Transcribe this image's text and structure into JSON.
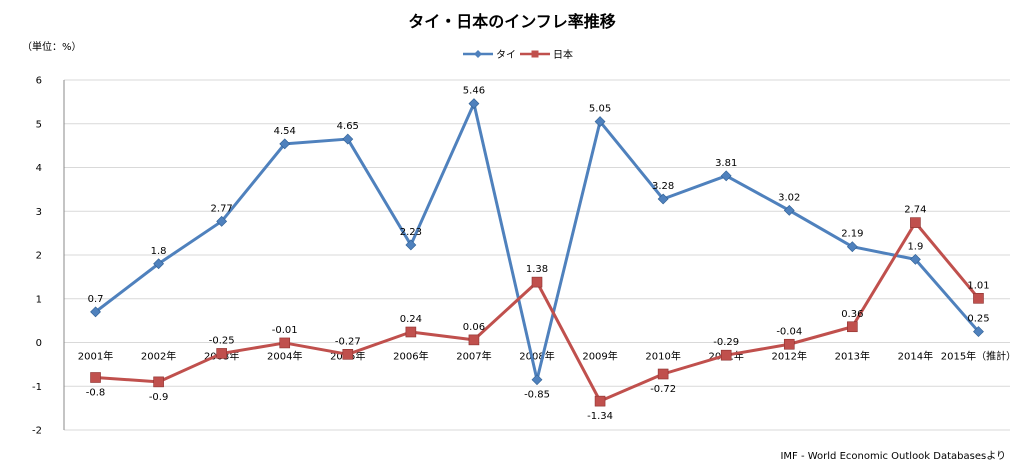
{
  "chart_data": {
    "type": "line",
    "title": "タイ・日本のインフレ率推移",
    "unit_label": "（単位：%）",
    "source": "IMF - World Economic Outlook Databasesより",
    "categories": [
      "2001年",
      "2002年",
      "2003年",
      "2004年",
      "2005年",
      "2006年",
      "2007年",
      "2008年",
      "2009年",
      "2010年",
      "2011年",
      "2012年",
      "2013年",
      "2014年",
      "2015年（推計）"
    ],
    "ylim": [
      -2,
      6
    ],
    "yticks": [
      -2,
      -1,
      0,
      1,
      2,
      3,
      4,
      5,
      6
    ],
    "grid": true,
    "legend_position": "top-center",
    "series": [
      {
        "name": "タイ",
        "color": "#4F81BD",
        "marker": "diamond",
        "values": [
          0.7,
          1.8,
          2.77,
          4.54,
          4.65,
          2.23,
          5.46,
          -0.85,
          5.05,
          3.28,
          3.81,
          3.02,
          2.19,
          1.9,
          0.25
        ],
        "labels": [
          "0.7",
          "1.8",
          "2.77",
          "4.54",
          "4.65",
          "2.23",
          "5.46",
          "-0.85",
          "5.05",
          "3.28",
          "3.81",
          "3.02",
          "2.19",
          "1.9",
          "0.25"
        ]
      },
      {
        "name": "日本",
        "color": "#C0504D",
        "marker": "square",
        "values": [
          -0.8,
          -0.9,
          -0.25,
          -0.01,
          -0.27,
          0.24,
          0.06,
          1.38,
          -1.34,
          -0.72,
          -0.29,
          -0.04,
          0.36,
          2.74,
          1.01
        ],
        "labels": [
          "-0.8",
          "-0.9",
          "-0.25",
          "-0.01",
          "-0.27",
          "0.24",
          "0.06",
          "1.38",
          "-1.34",
          "-0.72",
          "-0.29",
          "-0.04",
          "0.36",
          "2.74",
          "1.01"
        ]
      }
    ]
  }
}
